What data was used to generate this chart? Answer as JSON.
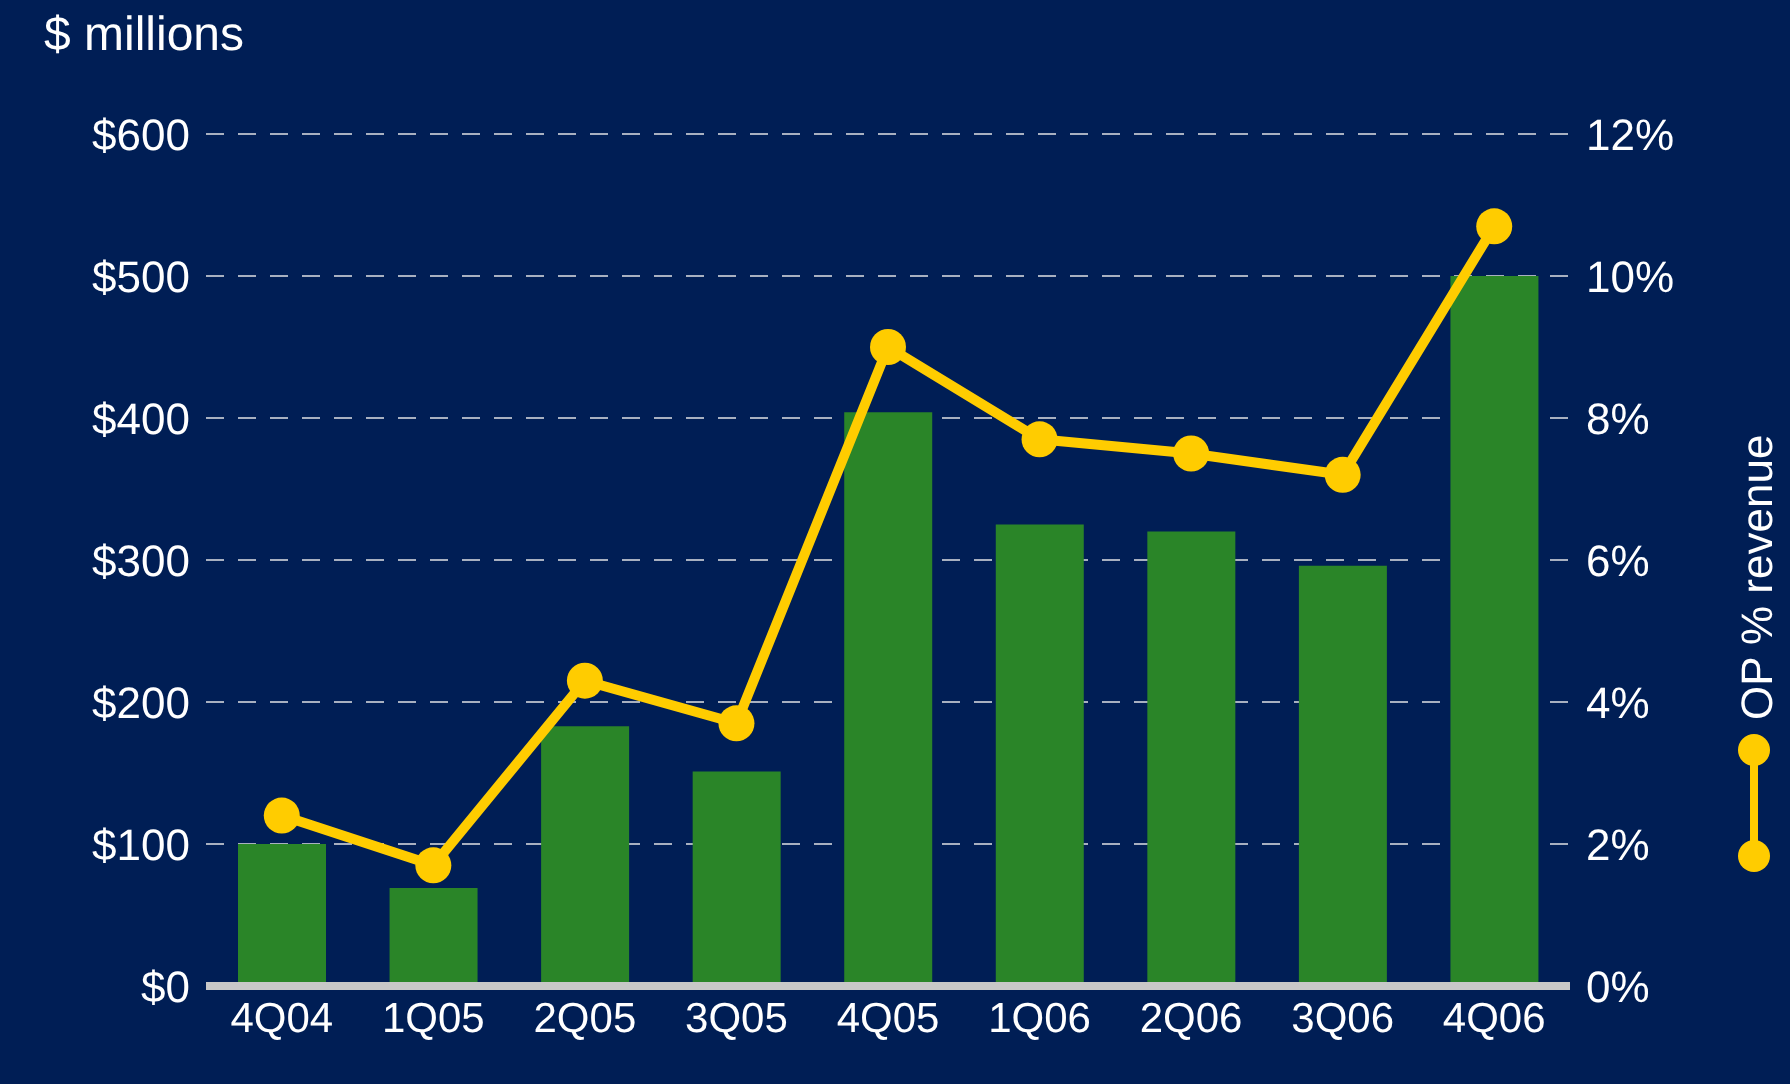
{
  "chart_data": {
    "type": "bar",
    "ylabel": "$ millions",
    "categories": [
      "4Q04",
      "1Q05",
      "2Q05",
      "3Q05",
      "4Q05",
      "1Q06",
      "2Q06",
      "3Q06",
      "4Q06"
    ],
    "series": [
      {
        "color": "#2a8528",
        "values": [
          100,
          69,
          183,
          151,
          404,
          325,
          320,
          296,
          500
        ]
      },
      {
        "type": "line",
        "axis": "y2",
        "name": "OP % revenue",
        "color": "#ffcc00",
        "values": [
          2.4,
          1.7,
          4.3,
          3.7,
          9.0,
          7.7,
          7.5,
          7.2,
          10.7
        ]
      }
    ],
    "ylim": [
      0,
      600
    ],
    "yticks": [
      {
        "value": 0,
        "label": "$0"
      },
      {
        "value": 100,
        "label": "$100"
      },
      {
        "value": 200,
        "label": "$200"
      },
      {
        "value": 300,
        "label": "$300"
      },
      {
        "value": 400,
        "label": "$400"
      },
      {
        "value": 500,
        "label": "$500"
      },
      {
        "value": 600,
        "label": "$600"
      }
    ],
    "y2lim": [
      0,
      12
    ],
    "y2ticks": [
      {
        "value": 0,
        "label": "0%"
      },
      {
        "value": 2,
        "label": "2%"
      },
      {
        "value": 4,
        "label": "4%"
      },
      {
        "value": 6,
        "label": "6%"
      },
      {
        "value": 8,
        "label": "8%"
      },
      {
        "value": 10,
        "label": "10%"
      },
      {
        "value": 12,
        "label": "12%"
      }
    ],
    "grid": "y",
    "legend": "right",
    "marker": "circle",
    "line_style": "solid"
  }
}
